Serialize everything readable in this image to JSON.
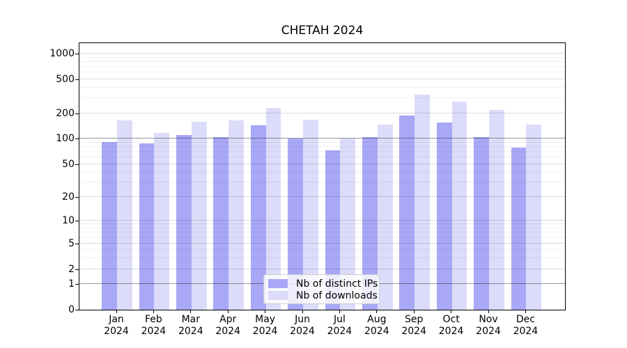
{
  "chart_data": {
    "type": "bar",
    "title": "CHETAH 2024",
    "categories": [
      "Jan",
      "Feb",
      "Mar",
      "Apr",
      "May",
      "Jun",
      "Jul",
      "Aug",
      "Sep",
      "Oct",
      "Nov",
      "Dec"
    ],
    "x_sub_label": "2024",
    "series": [
      {
        "name": "Nb of distinct IPs",
        "color": "#a8a8f6",
        "values": [
          92,
          88,
          111,
          105,
          144,
          101,
          73,
          105,
          188,
          155,
          104,
          79
        ]
      },
      {
        "name": "Nb of downloads",
        "color": "#dcdcfa",
        "values": [
          165,
          117,
          158,
          163,
          230,
          167,
          101,
          148,
          330,
          273,
          219,
          148
        ]
      }
    ],
    "yscale": "log1p",
    "ylim": [
      0,
      1326
    ],
    "y_ticks": [
      0,
      1,
      2,
      5,
      10,
      20,
      50,
      100,
      200,
      500,
      1000
    ],
    "y_tick_labels": [
      "0",
      "1",
      "2",
      "5",
      "10",
      "20",
      "50",
      "100",
      "200",
      "500",
      "1000"
    ],
    "minor_gridlines": [
      3,
      4,
      6,
      7,
      8,
      9,
      30,
      40,
      60,
      70,
      80,
      90,
      300,
      400,
      600,
      700,
      800,
      900
    ],
    "strong_gridlines": [
      1,
      100
    ],
    "grid": "both",
    "legend_position": "bottom-center"
  }
}
